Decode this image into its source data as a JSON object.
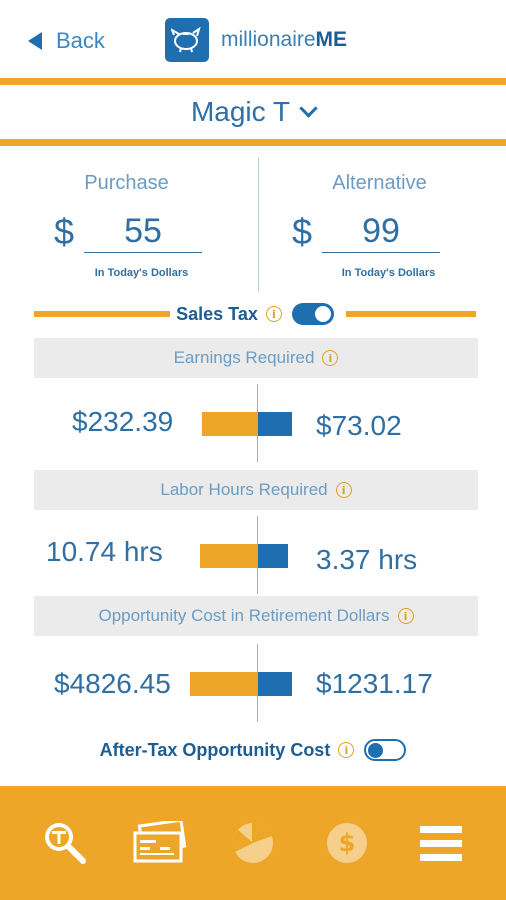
{
  "header": {
    "back_label": "Back",
    "logo_prefix": "millionaire",
    "logo_suffix": "ME"
  },
  "title": {
    "label": "Magic T"
  },
  "purchase": {
    "label": "Purchase",
    "currency": "$",
    "value": "55",
    "note": "In Today's Dollars"
  },
  "alternative": {
    "label": "Alternative",
    "currency": "$",
    "value": "99",
    "note": "In Today's Dollars"
  },
  "sales_tax": {
    "label": "Sales Tax",
    "enabled": true
  },
  "sections": {
    "earnings": {
      "title": "Earnings Required",
      "left_value": "$232.39",
      "right_value": "$73.02"
    },
    "labor": {
      "title": "Labor Hours Required",
      "left_value": "10.74 hrs",
      "right_value": "3.37 hrs"
    },
    "opportunity": {
      "title": "Opportunity Cost in Retirement Dollars",
      "left_value": "$4826.45",
      "right_value": "$1231.17"
    }
  },
  "after_tax": {
    "label": "After-Tax Opportunity Cost",
    "enabled": false
  },
  "footer": {
    "items": [
      "magic-t-search-icon",
      "checks-icon",
      "pie-chart-icon",
      "dollar-coin-icon",
      "menu-icon"
    ]
  },
  "colors": {
    "orange": "#eea628",
    "blue": "#1f6fb0",
    "light_blue": "#6a9cc4",
    "gray_bg": "#ebebeb"
  }
}
